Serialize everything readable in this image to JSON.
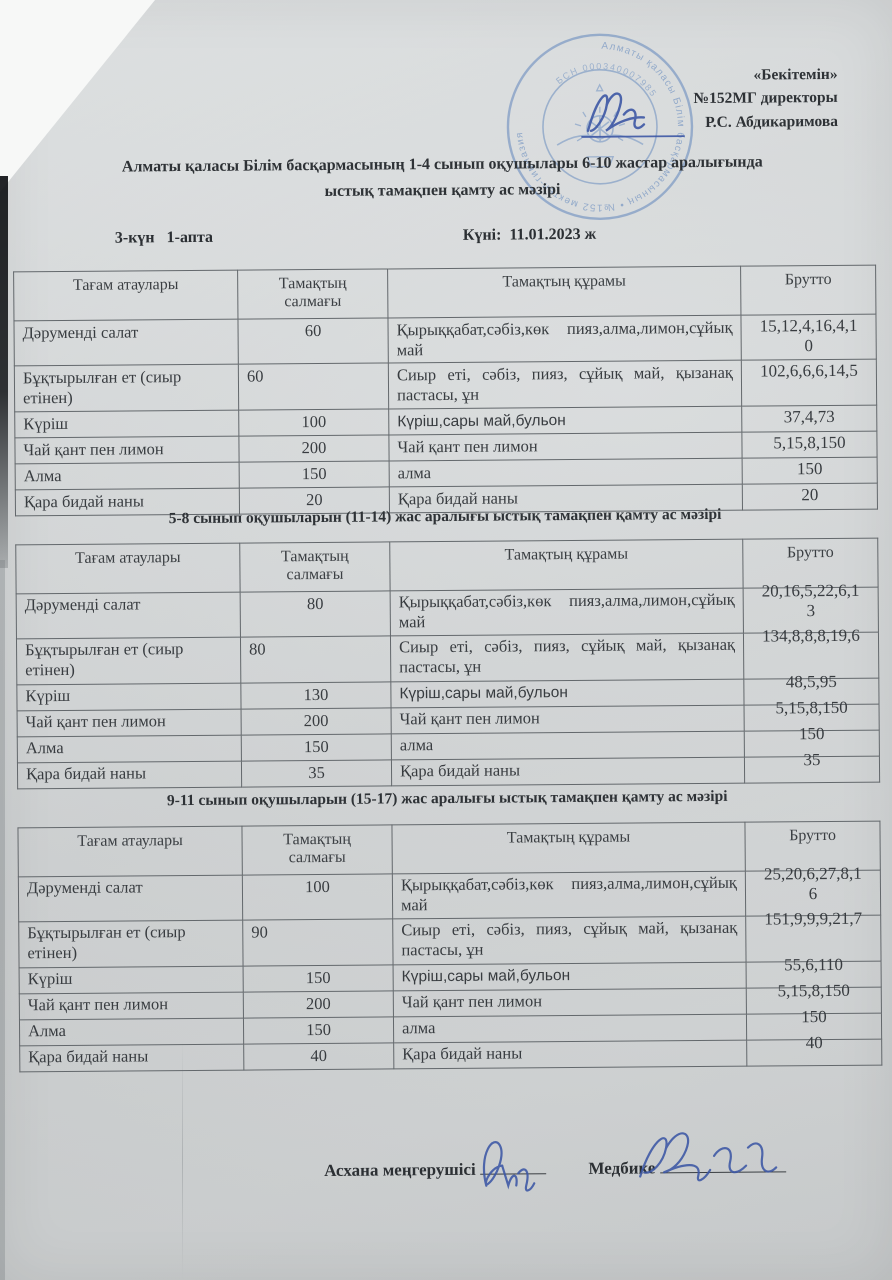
{
  "approval": {
    "line1": "«Бекітемін»",
    "line2": "№152МГ директоры",
    "line3": "Р.С. Абдикаримова"
  },
  "stamp": {
    "ring_outer": "Алматы қаласы Білім басқармасының  •  №152 мектеп-гимназия",
    "ring_inner": "БСН 000340007985"
  },
  "title": {
    "line1": "Алматы қаласы Білім басқармасының 1-4 сынып оқушылары 6-10 жастар аралығында",
    "line2": "ыстық тамақпен қамту ас мәзірі"
  },
  "meta": {
    "day_week": "3-күн   1-апта",
    "date": "Күні:  11.01.2023 ж"
  },
  "tables": [
    {
      "section_title": "",
      "headers": [
        "Тағам атаулары",
        "Тамақтың салмағы",
        "Тамақтың құрамы",
        "Брутто"
      ],
      "rows": [
        {
          "dish": "Дәруменді салат",
          "weight": "60",
          "ingredients": "Қырыққабат,сәбіз,көк пияз,алма,лимон,сұйық май",
          "brutto": "15,12,4,16,4,10"
        },
        {
          "dish": "Бұқтырылған ет (сиыр етінен)",
          "weight": "60",
          "ingredients": "Сиыр еті, сәбіз, пияз, сұйық май, қызанақ пастасы, ұн",
          "brutto": "102,6,6,6,14,5"
        },
        {
          "dish": "Күріш",
          "weight": "100",
          "ingredients": "Күріш,сары май,бульон",
          "brutto": "37,4,73"
        },
        {
          "dish": "Чай қант пен лимон",
          "weight": "200",
          "ingredients": "Чай қант пен лимон",
          "brutto": "5,15,8,150"
        },
        {
          "dish": "Алма",
          "weight": "150",
          "ingredients": "алма",
          "brutto": "150"
        },
        {
          "dish": "Қара бидай наны",
          "weight": "20",
          "ingredients": "Қара бидай наны",
          "brutto": "20"
        }
      ]
    },
    {
      "section_title": "5-8 сынып оқушыларын (11-14) жас аралығы ыстық тамақпен қамту ас мәзірі",
      "headers": [
        "Тағам атаулары",
        "Тамақтың салмағы",
        "Тамақтың құрамы",
        "Брутто"
      ],
      "rows": [
        {
          "dish": "Дәруменді салат",
          "weight": "80",
          "ingredients": "Қырыққабат,сәбіз,көк пияз,алма,лимон,сұйық май",
          "brutto": "20,16,5,22,6,13"
        },
        {
          "dish": "Бұқтырылған ет (сиыр етінен)",
          "weight": "80",
          "ingredients": "Сиыр еті, сәбіз, пияз, сұйық май, қызанақ пастасы, ұн",
          "brutto": "134,8,8,8,19,6"
        },
        {
          "dish": "Күріш",
          "weight": "130",
          "ingredients": "Күріш,сары май,бульон",
          "brutto": "48,5,95"
        },
        {
          "dish": "Чай қант пен лимон",
          "weight": "200",
          "ingredients": "Чай қант пен лимон",
          "brutto": "5,15,8,150"
        },
        {
          "dish": "Алма",
          "weight": "150",
          "ingredients": "алма",
          "brutto": "150"
        },
        {
          "dish": "Қара бидай наны",
          "weight": "35",
          "ingredients": "Қара бидай наны",
          "brutto": "35"
        }
      ]
    },
    {
      "section_title": "9-11 сынып оқушыларын (15-17) жас аралығы ыстық тамақпен қамту ас мәзірі",
      "headers": [
        "Тағам атаулары",
        "Тамақтың салмағы",
        "Тамақтың құрамы",
        "Брутто"
      ],
      "rows": [
        {
          "dish": "Дәруменді салат",
          "weight": "100",
          "ingredients": "Қырыққабат,сәбіз,көк пияз,алма,лимон,сұйық май",
          "brutto": "25,20,6,27,8,16"
        },
        {
          "dish": "Бұқтырылған ет (сиыр етінен)",
          "weight": "90",
          "ingredients": "Сиыр еті, сәбіз, пияз, сұйық май, қызанақ пастасы, ұн",
          "brutto": "151,9,9,9,21,7"
        },
        {
          "dish": "Күріш",
          "weight": "150",
          "ingredients": "Күріш,сары май,бульон",
          "brutto": "55,6,110"
        },
        {
          "dish": "Чай қант пен лимон",
          "weight": "200",
          "ingredients": "Чай қант пен лимон",
          "brutto": "5,15,8,150"
        },
        {
          "dish": "Алма",
          "weight": "150",
          "ingredients": "алма",
          "brutto": "150"
        },
        {
          "dish": "Қара бидай наны",
          "weight": "40",
          "ingredients": "Қара бидай наны",
          "brutto": "40"
        }
      ]
    }
  ],
  "footer": {
    "left_label": "Асхана меңгерушісі",
    "right_label": "Медбике"
  }
}
